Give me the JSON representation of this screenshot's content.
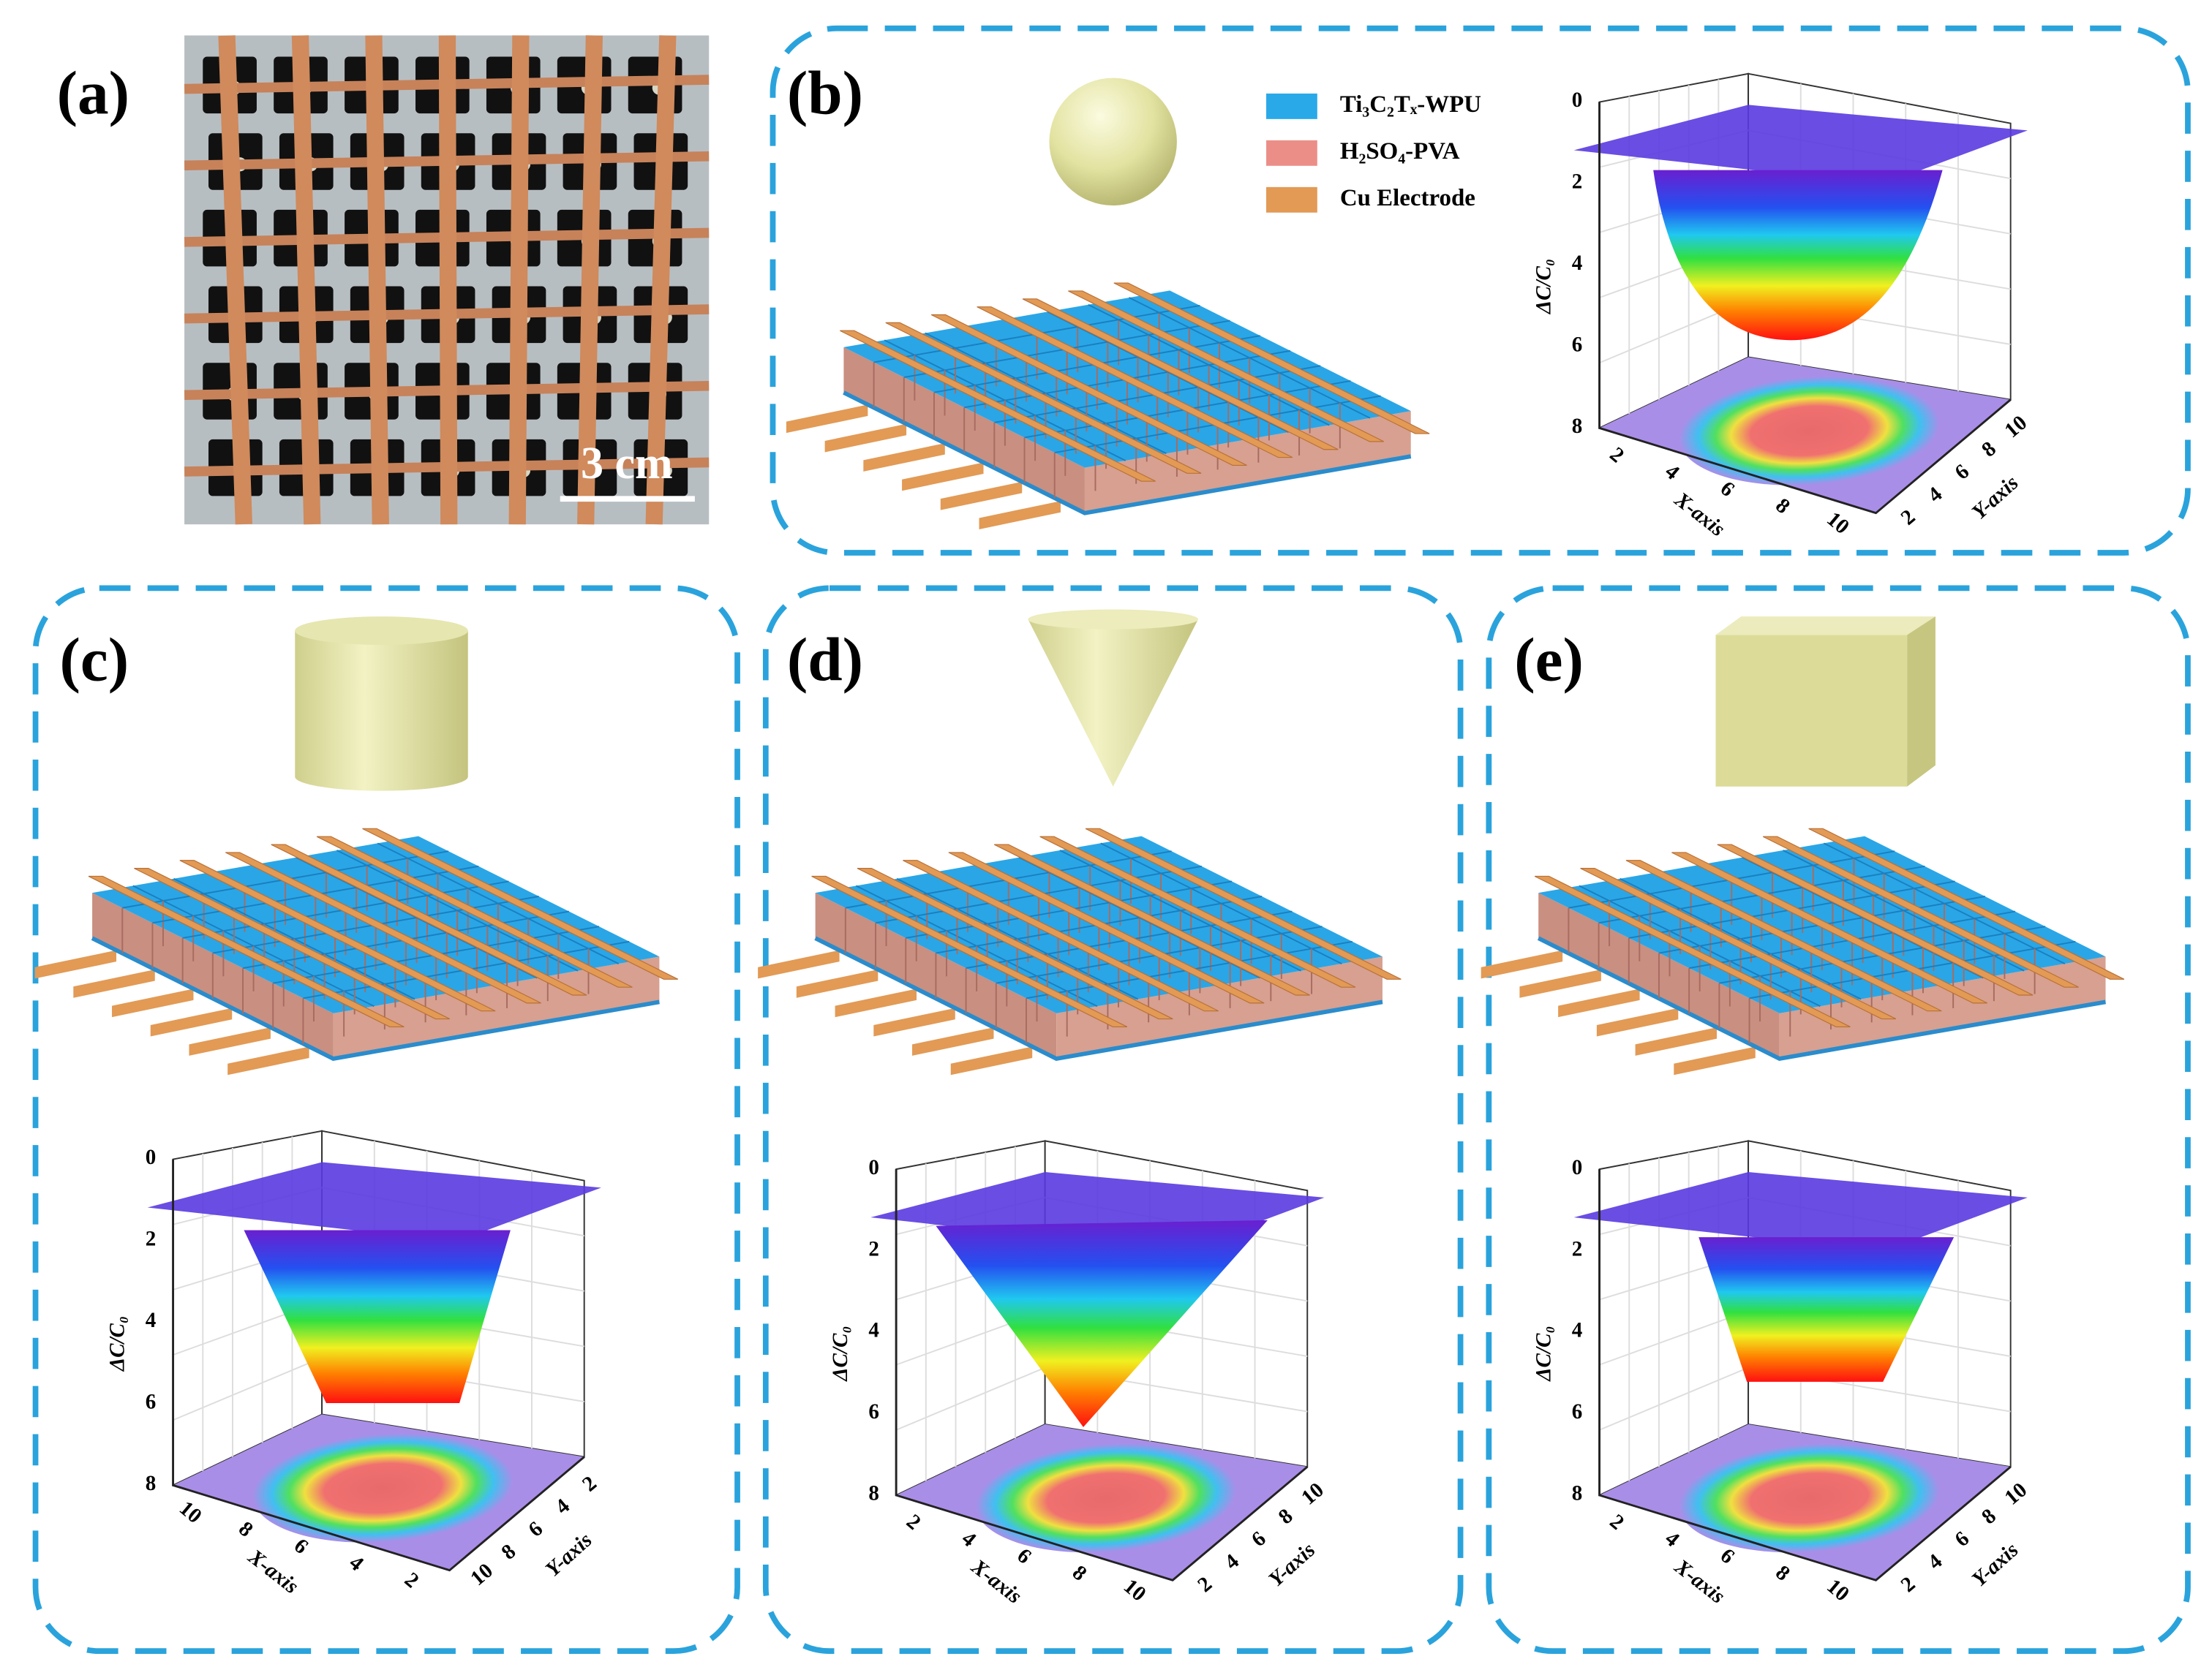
{
  "panels": [
    {
      "label": "(a)",
      "scale_bar": "3 cm"
    },
    {
      "label": "(b)",
      "legend": [
        "Ti₃C₂Tₓ-WPU",
        "H₂SO₄-PVA",
        "Cu Electrode"
      ],
      "plot": {
        "z_label": "ΔC/C₀",
        "x_label": "X-axis",
        "y_label": "Y-axis",
        "zticks": [
          0,
          2,
          4,
          6,
          8
        ],
        "xticks": [
          2,
          4,
          6,
          8,
          10
        ],
        "yticks": [
          2,
          4,
          6,
          8,
          10
        ]
      }
    },
    {
      "label": "(c)",
      "plot": {
        "z_label": "ΔC/C₀",
        "x_label": "X-axis",
        "y_label": "Y-axis",
        "zticks": [
          0,
          2,
          4,
          6,
          8
        ],
        "xticks": [
          10,
          8,
          6,
          4,
          2
        ],
        "yticks": [
          10,
          8,
          6,
          4,
          2
        ]
      }
    },
    {
      "label": "(d)",
      "plot": {
        "z_label": "ΔC/C₀",
        "x_label": "X-axis",
        "y_label": "Y-axis",
        "zticks": [
          0,
          2,
          4,
          6,
          8
        ],
        "xticks": [
          2,
          4,
          6,
          8,
          10
        ],
        "yticks": [
          2,
          4,
          6,
          8,
          10
        ]
      }
    },
    {
      "label": "(e)",
      "plot": {
        "z_label": "ΔC/C₀",
        "x_label": "X-axis",
        "y_label": "Y-axis",
        "zticks": [
          0,
          2,
          4,
          6,
          8
        ],
        "xticks": [
          2,
          4,
          6,
          8,
          10
        ],
        "yticks": [
          2,
          4,
          6,
          8,
          10
        ]
      }
    }
  ]
}
